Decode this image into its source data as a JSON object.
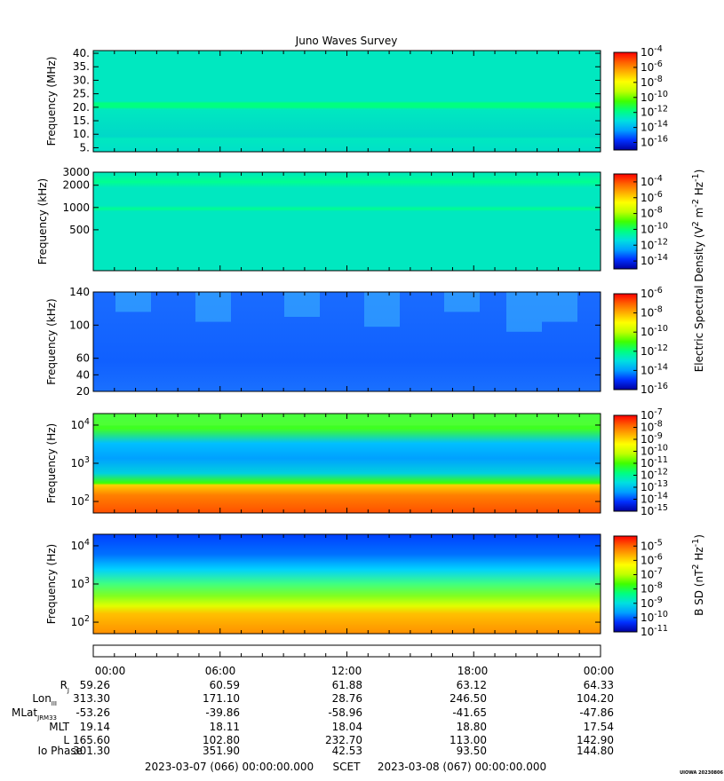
{
  "title": "Juno Waves Survey",
  "colors": {
    "colormap": [
      "#0000a0",
      "#0030ff",
      "#00a0ff",
      "#00e0e0",
      "#00ff80",
      "#40ff00",
      "#c0ff00",
      "#ffff00",
      "#ffb000",
      "#ff6000",
      "#ff0000"
    ]
  },
  "chart_data": [
    {
      "type": "heatmap",
      "ylabel": "Frequency (MHz)",
      "yticks": [
        "5.",
        "10.",
        "15.",
        "20.",
        "25.",
        "30.",
        "35.",
        "40."
      ],
      "ytick_values": [
        5,
        10,
        15,
        20,
        25,
        30,
        35,
        40
      ],
      "ylim": [
        3.5,
        41
      ],
      "yscale": "linear",
      "colorbar_ticks": [
        "10^-4",
        "10^-6",
        "10^-8",
        "10^-10",
        "10^-12",
        "10^-14",
        "10^-16"
      ],
      "clim_exp": [
        -17,
        -4
      ]
    },
    {
      "type": "heatmap",
      "ylabel": "Frequency (kHz)",
      "yticks": [
        "3000",
        "2000",
        "1000",
        "500"
      ],
      "ytick_values": [
        3000,
        2000,
        1000,
        500
      ],
      "ylim": [
        140,
        3000
      ],
      "yscale": "log",
      "colorbar_ticks": [
        "10^-4",
        "10^-6",
        "10^-8",
        "10^-10",
        "10^-12",
        "10^-14"
      ],
      "clim_exp": [
        -15,
        -3
      ]
    },
    {
      "type": "heatmap",
      "ylabel": "Frequency (kHz)",
      "yticks": [
        "140",
        "100",
        "60",
        "40",
        "20"
      ],
      "ytick_values": [
        140,
        100,
        60,
        40,
        20
      ],
      "ylim": [
        20,
        140
      ],
      "yscale": "linear",
      "colorbar_ticks": [
        "10^-6",
        "10^-8",
        "10^-10",
        "10^-12",
        "10^-14",
        "10^-16"
      ],
      "clim_exp": [
        -16,
        -6
      ]
    },
    {
      "type": "heatmap",
      "ylabel": "Frequency (Hz)",
      "yticks": [
        "10^4",
        "10^3",
        "10^2"
      ],
      "ytick_values": [
        10000,
        1000,
        100
      ],
      "ylim": [
        50,
        20000
      ],
      "yscale": "log",
      "colorbar_ticks": [
        "10^-7",
        "10^-8",
        "10^-9",
        "10^-10",
        "10^-11",
        "10^-12",
        "10^-13",
        "10^-14",
        "10^-15"
      ],
      "clim_exp": [
        -15,
        -7
      ]
    },
    {
      "type": "heatmap",
      "ylabel": "Frequency (Hz)",
      "yticks": [
        "10^4",
        "10^3",
        "10^2"
      ],
      "ytick_values": [
        10000,
        1000,
        100
      ],
      "ylim": [
        50,
        20000
      ],
      "yscale": "log",
      "colorbar_ticks": [
        "10^-5",
        "10^-6",
        "10^-7",
        "10^-8",
        "10^-9",
        "10^-10",
        "10^-11"
      ],
      "clim_exp": [
        -11,
        -4.3
      ]
    }
  ],
  "side_labels": [
    {
      "text": "Electric Spectral Density (V^2 m^-2 Hz^-1)"
    },
    {
      "text": "B SD (nT^2 Hz^-1)"
    }
  ],
  "xaxis": {
    "ticks": [
      "00:00",
      "06:00",
      "12:00",
      "18:00",
      "00:00"
    ],
    "rows": [
      {
        "label": "R_J",
        "values": [
          "59.26",
          "60.59",
          "61.88",
          "63.12",
          "64.33"
        ]
      },
      {
        "label": "Lon_III",
        "values": [
          "313.30",
          "171.10",
          "28.76",
          "246.50",
          "104.20"
        ]
      },
      {
        "label": "MLat_JRM33",
        "values": [
          "-53.26",
          "-39.86",
          "-58.96",
          "-41.65",
          "-47.86"
        ]
      },
      {
        "label": "MLT",
        "values": [
          "19.14",
          "18.11",
          "18.04",
          "18.80",
          "17.54"
        ]
      },
      {
        "label": "L",
        "values": [
          "165.60",
          "102.80",
          "232.70",
          "113.00",
          "142.90"
        ]
      },
      {
        "label": "Io Phase",
        "values": [
          "301.30",
          "351.90",
          "42.53",
          "93.50",
          "144.80"
        ]
      }
    ]
  },
  "footer": {
    "start": "2023-03-07 (066) 00:00:00.000",
    "scet": "SCET",
    "end": "2023-03-08 (067) 00:00:00.000",
    "stamp": "UIOWA 20230806"
  }
}
